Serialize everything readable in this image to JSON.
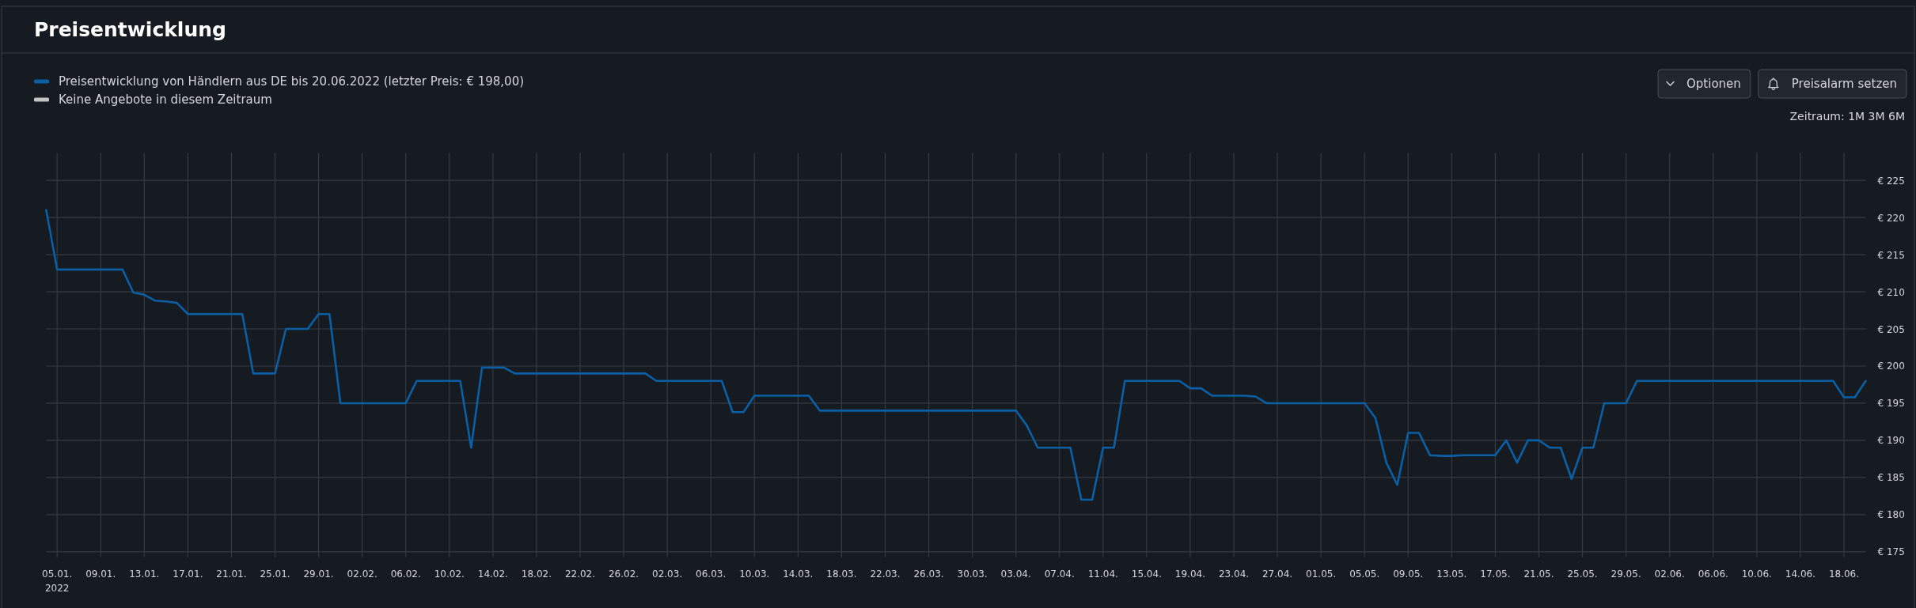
{
  "chart_data": {
    "type": "line",
    "title": "Preisentwicklung",
    "x": [
      "2022-01-04",
      "2022-01-05",
      "2022-01-11",
      "2022-01-12",
      "2022-01-13",
      "2022-01-14",
      "2022-01-15",
      "2022-01-16",
      "2022-01-17",
      "2022-01-22",
      "2022-01-23",
      "2022-01-25",
      "2022-01-26",
      "2022-01-28",
      "2022-01-29",
      "2022-01-30",
      "2022-01-31",
      "2022-02-06",
      "2022-02-07",
      "2022-02-11",
      "2022-02-12",
      "2022-02-13",
      "2022-02-15",
      "2022-02-16",
      "2022-02-28",
      "2022-03-01",
      "2022-03-07",
      "2022-03-08",
      "2022-03-09",
      "2022-03-10",
      "2022-03-15",
      "2022-03-16",
      "2022-04-03",
      "2022-04-04",
      "2022-04-05",
      "2022-04-08",
      "2022-04-09",
      "2022-04-10",
      "2022-04-11",
      "2022-04-12",
      "2022-04-13",
      "2022-04-18",
      "2022-04-19",
      "2022-04-20",
      "2022-04-21",
      "2022-04-24",
      "2022-04-25",
      "2022-04-26",
      "2022-05-05",
      "2022-05-06",
      "2022-05-07",
      "2022-05-08",
      "2022-05-09",
      "2022-05-10",
      "2022-05-11",
      "2022-05-12",
      "2022-05-13",
      "2022-05-14",
      "2022-05-17",
      "2022-05-18",
      "2022-05-19",
      "2022-05-20",
      "2022-05-21",
      "2022-05-22",
      "2022-05-23",
      "2022-05-24",
      "2022-05-25",
      "2022-05-26",
      "2022-05-27",
      "2022-05-29",
      "2022-05-30",
      "2022-06-17",
      "2022-06-18",
      "2022-06-19",
      "2022-06-20"
    ],
    "series": [
      {
        "name": "Preisentwicklung von Händlern aus DE bis 20.06.2022 (letzter Preis: € 198,00)",
        "color": "#0b5fa5",
        "values": [
          221,
          213,
          213,
          209.9,
          209.6,
          208.8,
          208.7,
          208.5,
          207,
          207,
          199,
          199,
          205,
          205,
          207,
          207,
          195,
          195,
          198,
          198,
          189,
          199.8,
          199.8,
          199,
          199,
          198,
          198,
          193.8,
          193.8,
          196,
          196,
          194,
          194,
          192,
          189,
          189,
          182,
          182,
          189,
          189,
          198,
          198,
          197,
          197,
          196,
          196,
          195.9,
          195,
          195,
          193,
          187,
          184,
          191,
          191,
          188,
          187.9,
          187.9,
          188,
          188,
          190,
          187,
          190,
          190,
          189,
          189,
          184.8,
          189,
          189,
          195,
          195,
          198,
          198,
          195.8,
          195.8,
          198
        ]
      },
      {
        "name": "Keine Angebote in diesem Zeitraum",
        "color": "#c4c4c4",
        "values": [
          null,
          null,
          null,
          null,
          null,
          null,
          null,
          null,
          null,
          null,
          null,
          null,
          null,
          null,
          null,
          null,
          null,
          null,
          null,
          null,
          null,
          null,
          null,
          null,
          null,
          null,
          null,
          null,
          null,
          null,
          null,
          null,
          null,
          null,
          null,
          null,
          null,
          null,
          null,
          null,
          null,
          null,
          null,
          null,
          null,
          null,
          null,
          null,
          null,
          null,
          null,
          null,
          null,
          null,
          null,
          null,
          null,
          null,
          null,
          null,
          null,
          null,
          null,
          null,
          null,
          null,
          null,
          null,
          null,
          null,
          null,
          null,
          null,
          null,
          null
        ]
      }
    ],
    "xlim": [
      "2022-01-04",
      "2022-06-20"
    ],
    "xticks": [
      {
        "value": "2022-01-05",
        "label": "05.01.\n2022"
      },
      {
        "value": "2022-01-09",
        "label": "09.01."
      },
      {
        "value": "2022-01-13",
        "label": "13.01."
      },
      {
        "value": "2022-01-17",
        "label": "17.01."
      },
      {
        "value": "2022-01-21",
        "label": "21.01."
      },
      {
        "value": "2022-01-25",
        "label": "25.01."
      },
      {
        "value": "2022-01-29",
        "label": "29.01."
      },
      {
        "value": "2022-02-02",
        "label": "02.02."
      },
      {
        "value": "2022-02-06",
        "label": "06.02."
      },
      {
        "value": "2022-02-10",
        "label": "10.02."
      },
      {
        "value": "2022-02-14",
        "label": "14.02."
      },
      {
        "value": "2022-02-18",
        "label": "18.02."
      },
      {
        "value": "2022-02-22",
        "label": "22.02."
      },
      {
        "value": "2022-02-26",
        "label": "26.02."
      },
      {
        "value": "2022-03-02",
        "label": "02.03."
      },
      {
        "value": "2022-03-06",
        "label": "06.03."
      },
      {
        "value": "2022-03-10",
        "label": "10.03."
      },
      {
        "value": "2022-03-14",
        "label": "14.03."
      },
      {
        "value": "2022-03-18",
        "label": "18.03."
      },
      {
        "value": "2022-03-22",
        "label": "22.03."
      },
      {
        "value": "2022-03-26",
        "label": "26.03."
      },
      {
        "value": "2022-03-30",
        "label": "30.03."
      },
      {
        "value": "2022-04-03",
        "label": "03.04."
      },
      {
        "value": "2022-04-07",
        "label": "07.04."
      },
      {
        "value": "2022-04-11",
        "label": "11.04."
      },
      {
        "value": "2022-04-15",
        "label": "15.04."
      },
      {
        "value": "2022-04-19",
        "label": "19.04."
      },
      {
        "value": "2022-04-23",
        "label": "23.04."
      },
      {
        "value": "2022-04-27",
        "label": "27.04."
      },
      {
        "value": "2022-05-01",
        "label": "01.05."
      },
      {
        "value": "2022-05-05",
        "label": "05.05."
      },
      {
        "value": "2022-05-09",
        "label": "09.05."
      },
      {
        "value": "2022-05-13",
        "label": "13.05."
      },
      {
        "value": "2022-05-17",
        "label": "17.05."
      },
      {
        "value": "2022-05-21",
        "label": "21.05."
      },
      {
        "value": "2022-05-25",
        "label": "25.05."
      },
      {
        "value": "2022-05-29",
        "label": "29.05."
      },
      {
        "value": "2022-06-02",
        "label": "02.06."
      },
      {
        "value": "2022-06-06",
        "label": "06.06."
      },
      {
        "value": "2022-06-10",
        "label": "10.06."
      },
      {
        "value": "2022-06-14",
        "label": "14.06."
      },
      {
        "value": "2022-06-18",
        "label": "18.06."
      }
    ],
    "ylim": [
      175,
      228.7
    ],
    "yticks": [
      {
        "value": 175,
        "label": "€ 175"
      },
      {
        "value": 180,
        "label": "€ 180"
      },
      {
        "value": 185,
        "label": "€ 185"
      },
      {
        "value": 190,
        "label": "€ 190"
      },
      {
        "value": 195,
        "label": "€ 195"
      },
      {
        "value": 200,
        "label": "€ 200"
      },
      {
        "value": 205,
        "label": "€ 205"
      },
      {
        "value": 210,
        "label": "€ 210"
      },
      {
        "value": 215,
        "label": "€ 215"
      },
      {
        "value": 220,
        "label": "€ 220"
      },
      {
        "value": 225,
        "label": "€ 225"
      }
    ],
    "grid": true,
    "legend": "top left",
    "annotations": [
      "Optionen",
      "Preisalarm setzen",
      "Zeitraum: 1M 3M 6M"
    ]
  }
}
